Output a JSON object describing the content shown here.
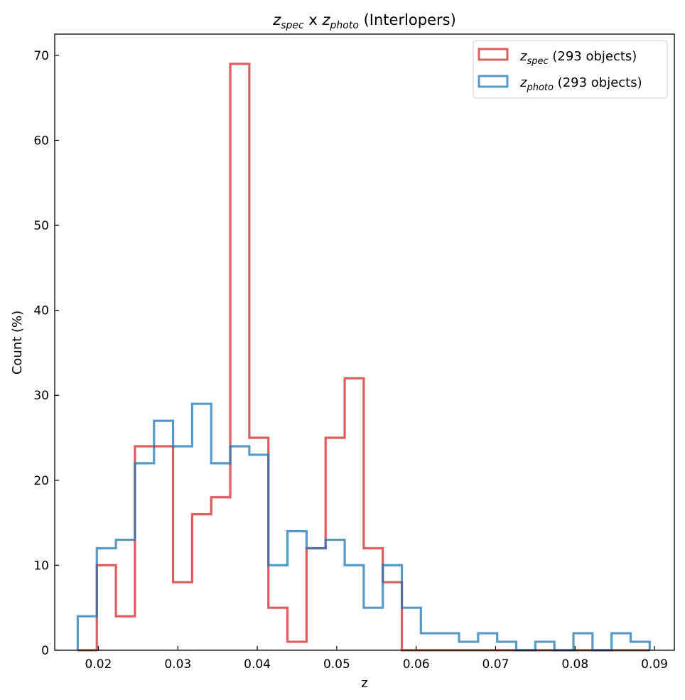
{
  "chart_data": {
    "type": "histogram-step",
    "title": {
      "a_sym": "z",
      "a_sub": "spec",
      "mid": " x ",
      "b_sym": "z",
      "b_sub": "photo",
      "suffix": " (Interlopers)"
    },
    "xlabel": "z",
    "ylabel": "Count (%)",
    "xlim": [
      0.0145,
      0.0925
    ],
    "ylim": [
      0,
      72.5
    ],
    "xticks": [
      0.02,
      0.03,
      0.04,
      0.05,
      0.06,
      0.07,
      0.08,
      0.09
    ],
    "xtick_labels": [
      "0.02",
      "0.03",
      "0.04",
      "0.05",
      "0.06",
      "0.07",
      "0.08",
      "0.09"
    ],
    "yticks": [
      0,
      10,
      20,
      30,
      40,
      50,
      60,
      70
    ],
    "ytick_labels": [
      "0",
      "10",
      "20",
      "30",
      "40",
      "50",
      "60",
      "70"
    ],
    "bin_start": 0.0174,
    "bin_width": 0.0024,
    "legend_position": "upper-right",
    "series": [
      {
        "sym": "z",
        "sub": "spec",
        "suffix": " (293 objects)",
        "color": "#d62728",
        "values": [
          0,
          10,
          4,
          24,
          24,
          8,
          16,
          18,
          69,
          25,
          5,
          1,
          12,
          25,
          32,
          12,
          8,
          0,
          0,
          0,
          0,
          0,
          0,
          0,
          0,
          0,
          0,
          0,
          0,
          0
        ]
      },
      {
        "sym": "z",
        "sub": "photo",
        "suffix": " (293 objects)",
        "color": "#1f77b4",
        "values": [
          4,
          12,
          13,
          22,
          27,
          24,
          29,
          22,
          24,
          23,
          10,
          14,
          12,
          13,
          10,
          5,
          10,
          5,
          2,
          2,
          1,
          2,
          1,
          0,
          1,
          0,
          2,
          0,
          2,
          1
        ]
      }
    ]
  }
}
